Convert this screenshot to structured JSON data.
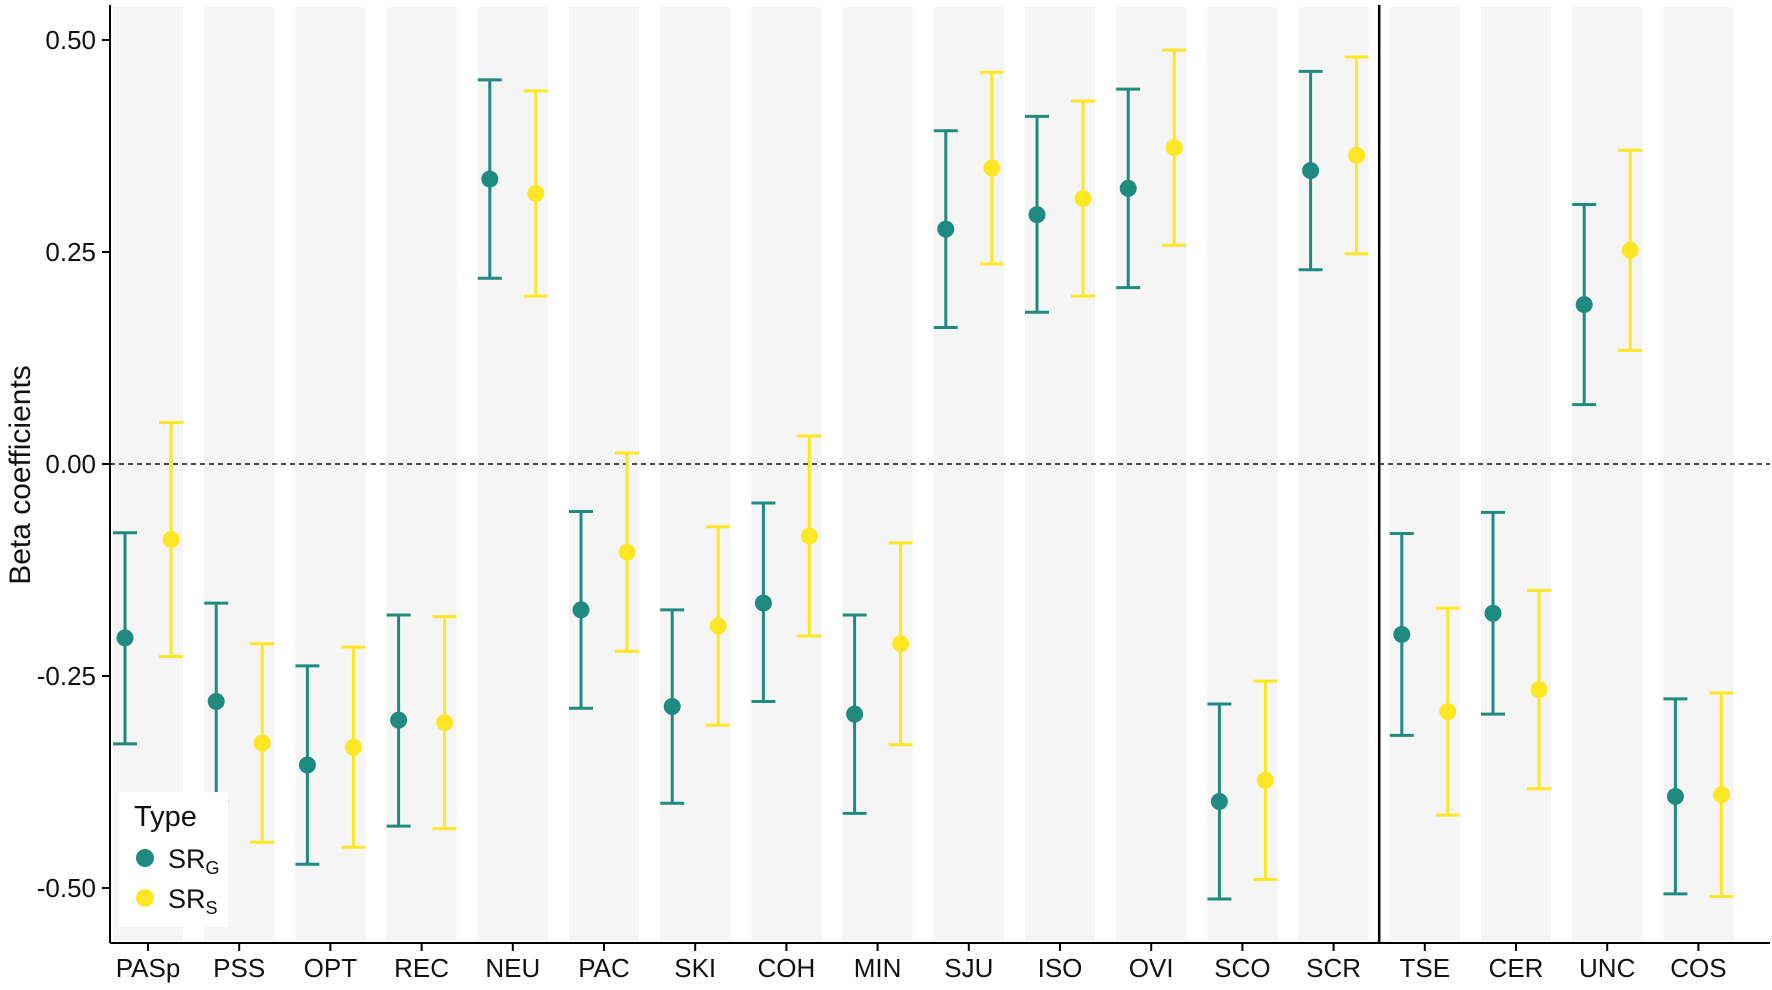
{
  "chart_data": {
    "type": "scatter",
    "title": "",
    "xlabel": "",
    "ylabel": "Beta coefficients",
    "ylim": [
      -0.56,
      0.54
    ],
    "yticks": [
      0.5,
      0.25,
      0.0,
      -0.25,
      -0.5
    ],
    "ytick_labels": [
      "0.50",
      "0.25",
      "0.00",
      "-0.25",
      "-0.50"
    ],
    "reference_line_y": 0.0,
    "group_separator_after": "SCR",
    "categories": [
      "PASp",
      "PSS",
      "OPT",
      "REC",
      "NEU",
      "PAC",
      "SKI",
      "COH",
      "MIN",
      "SJU",
      "ISO",
      "OVI",
      "SCO",
      "SCR",
      "TSE",
      "CER",
      "UNC",
      "COS"
    ],
    "series": [
      {
        "name": "SRG",
        "label_main": "SR",
        "label_sub": "G",
        "color": "#1f8a80",
        "values": [
          -0.205,
          -0.28,
          -0.355,
          -0.302,
          0.336,
          -0.172,
          -0.286,
          -0.164,
          -0.295,
          0.277,
          0.294,
          0.325,
          -0.398,
          0.346,
          -0.201,
          -0.176,
          0.188,
          -0.392
        ],
        "lower": [
          -0.33,
          -0.397,
          -0.472,
          -0.427,
          0.219,
          -0.288,
          -0.4,
          -0.28,
          -0.412,
          0.161,
          0.179,
          0.208,
          -0.513,
          0.229,
          -0.32,
          -0.295,
          0.07,
          -0.507
        ],
        "upper": [
          -0.081,
          -0.164,
          -0.238,
          -0.178,
          0.453,
          -0.056,
          -0.172,
          -0.046,
          -0.178,
          0.393,
          0.41,
          0.442,
          -0.283,
          0.463,
          -0.082,
          -0.057,
          0.306,
          -0.277
        ]
      },
      {
        "name": "SRS",
        "label_main": "SR",
        "label_sub": "S",
        "color": "#fde725",
        "values": [
          -0.089,
          -0.329,
          -0.334,
          -0.305,
          0.319,
          -0.104,
          -0.191,
          -0.085,
          -0.212,
          0.349,
          0.313,
          0.373,
          -0.373,
          0.364,
          -0.292,
          -0.266,
          0.252,
          -0.39
        ],
        "lower": [
          -0.227,
          -0.446,
          -0.452,
          -0.43,
          0.198,
          -0.221,
          -0.308,
          -0.203,
          -0.331,
          0.236,
          0.198,
          0.258,
          -0.49,
          0.248,
          -0.414,
          -0.383,
          0.134,
          -0.51
        ],
        "upper": [
          0.049,
          -0.212,
          -0.216,
          -0.18,
          0.44,
          0.013,
          -0.074,
          0.033,
          -0.093,
          0.462,
          0.428,
          0.488,
          -0.256,
          0.48,
          -0.17,
          -0.149,
          0.37,
          -0.27
        ]
      }
    ],
    "legend": {
      "title": "Type",
      "position": "bottom-left"
    }
  }
}
